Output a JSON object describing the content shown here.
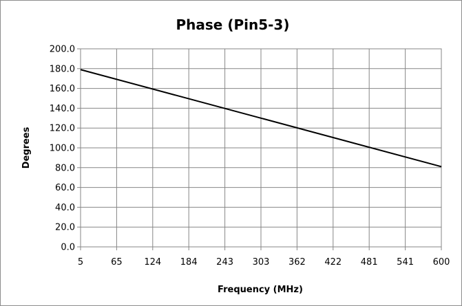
{
  "chart_data": {
    "type": "line",
    "title": "Phase (Pin5-3)",
    "xlabel": "Frequency (MHz)",
    "ylabel": "Degrees",
    "x_ticks": [
      "5",
      "65",
      "124",
      "184",
      "243",
      "303",
      "362",
      "422",
      "481",
      "541",
      "600"
    ],
    "y_ticks": [
      "0.0",
      "20.0",
      "40.0",
      "60.0",
      "80.0",
      "100.0",
      "120.0",
      "140.0",
      "160.0",
      "180.0",
      "200.0"
    ],
    "xlim": [
      5,
      600
    ],
    "ylim": [
      0,
      200
    ],
    "grid": true,
    "legend": "none",
    "series": [
      {
        "color": "#000000",
        "x": [
          5,
          600
        ],
        "y": [
          179,
          81
        ]
      }
    ]
  }
}
